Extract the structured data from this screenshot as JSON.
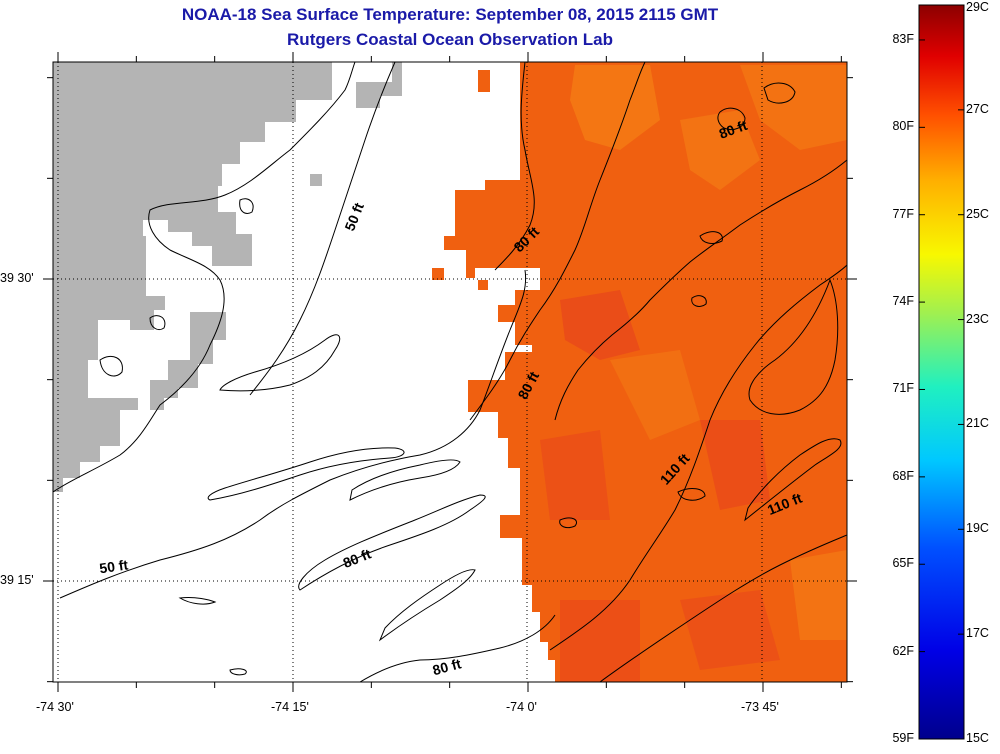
{
  "header": {
    "title": "NOAA-18 Sea Surface Temperature:  September 08, 2015 2115 GMT",
    "subtitle": "Rutgers Coastal Ocean Observation Lab"
  },
  "map": {
    "y_ticks": [
      {
        "label": "39 30'",
        "lat": 39.5
      },
      {
        "label": "39 15'",
        "lat": 39.25
      }
    ],
    "x_ticks": [
      {
        "label": "-74 30'",
        "lon": -74.5
      },
      {
        "label": "-74 15'",
        "lon": -74.25
      },
      {
        "label": "-74 0'",
        "lon": -74.0
      },
      {
        "label": "-73 45'",
        "lon": -73.75
      }
    ],
    "contour_labels": [
      {
        "text": "50 ft",
        "lon": -74.18,
        "lat": 39.55,
        "angle": -68
      },
      {
        "text": "80 ft",
        "lon": -73.998,
        "lat": 39.53,
        "angle": -45
      },
      {
        "text": "80 ft",
        "lon": -73.78,
        "lat": 39.62,
        "angle": -20
      },
      {
        "text": "80 ft",
        "lon": -73.995,
        "lat": 39.41,
        "angle": -62
      },
      {
        "text": "110 ft",
        "lon": -73.84,
        "lat": 39.34,
        "angle": -48
      },
      {
        "text": "110 ft",
        "lon": -73.725,
        "lat": 39.31,
        "angle": -22
      },
      {
        "text": "80 ft",
        "lon": -74.18,
        "lat": 39.265,
        "angle": -22
      },
      {
        "text": "50 ft",
        "lon": -74.44,
        "lat": 39.258,
        "angle": -8
      },
      {
        "text": "80 ft",
        "lon": -74.085,
        "lat": 39.175,
        "angle": -15
      }
    ],
    "colors": {
      "land": "#b4b4b4",
      "sst_main": "#f06010",
      "sst_warm": "#f47a14",
      "sst_cool": "#e9481a",
      "contour": "#000000"
    }
  },
  "colorbar": {
    "left_labels": [
      "83F",
      "80F",
      "77F",
      "74F",
      "71F",
      "68F",
      "65F",
      "62F",
      "59F"
    ],
    "right_labels": [
      "29C",
      "27C",
      "25C",
      "23C",
      "21C",
      "19C",
      "17C",
      "15C"
    ],
    "min_c": 15,
    "max_c": 29
  }
}
